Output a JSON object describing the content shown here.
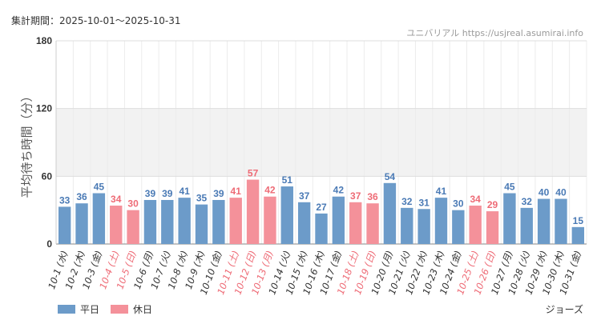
{
  "header": {
    "period": "集計期間：2025-10-01～2025-10-31",
    "source": "ユニバリアル  https://usjreal.asumirai.info"
  },
  "attraction": "ジョーズ",
  "legend": {
    "weekday": "平日",
    "holiday": "休日"
  },
  "colors": {
    "weekday": "#6c9bc9",
    "holiday": "#f4919a",
    "weekday_label": "#4a7ab5",
    "holiday_label": "#ee6b76",
    "band": "#f2f2f2"
  },
  "chart_data": {
    "type": "bar",
    "title": "",
    "ylabel": "平均待ち時間（分）",
    "xlabel": "",
    "ylim": [
      0,
      180
    ],
    "yticks": [
      0,
      60,
      120,
      180
    ],
    "categories": [
      "10-1 (水)",
      "10-2 (木)",
      "10-3 (金)",
      "10-4 (土)",
      "10-5 (日)",
      "10-6 (月)",
      "10-7 (火)",
      "10-8 (水)",
      "10-9 (木)",
      "10-10 (金)",
      "10-11 (土)",
      "10-12 (日)",
      "10-13 (月)",
      "10-14 (火)",
      "10-15 (水)",
      "10-16 (木)",
      "10-17 (金)",
      "10-18 (土)",
      "10-19 (日)",
      "10-20 (月)",
      "10-21 (火)",
      "10-22 (水)",
      "10-23 (木)",
      "10-24 (金)",
      "10-25 (土)",
      "10-26 (日)",
      "10-27 (月)",
      "10-28 (火)",
      "10-29 (水)",
      "10-30 (木)",
      "10-31 (金)"
    ],
    "values": [
      33,
      36,
      45,
      34,
      30,
      39,
      39,
      41,
      35,
      39,
      41,
      57,
      42,
      51,
      37,
      27,
      42,
      37,
      36,
      54,
      32,
      31,
      41,
      30,
      34,
      29,
      45,
      32,
      40,
      40,
      15
    ],
    "day_type": [
      "weekday",
      "weekday",
      "weekday",
      "holiday",
      "holiday",
      "weekday",
      "weekday",
      "weekday",
      "weekday",
      "weekday",
      "holiday",
      "holiday",
      "holiday",
      "weekday",
      "weekday",
      "weekday",
      "weekday",
      "holiday",
      "holiday",
      "weekday",
      "weekday",
      "weekday",
      "weekday",
      "weekday",
      "holiday",
      "holiday",
      "weekday",
      "weekday",
      "weekday",
      "weekday",
      "weekday"
    ],
    "legend": [
      "平日",
      "休日"
    ],
    "legend_position": "bottom-left"
  }
}
